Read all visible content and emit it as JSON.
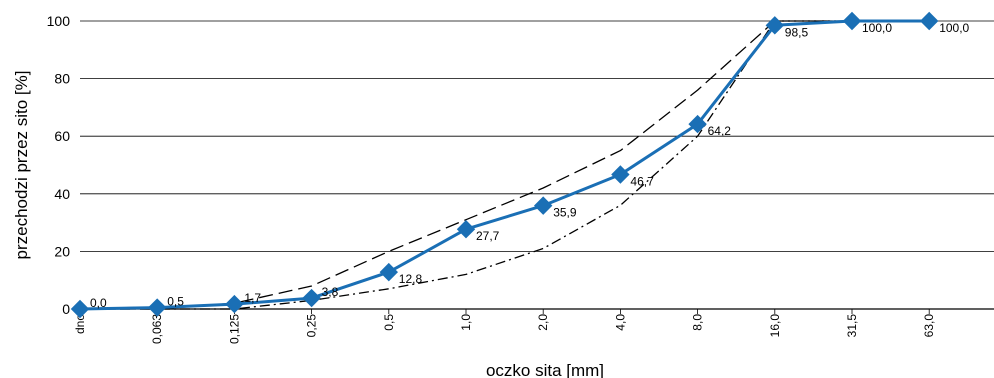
{
  "chart_data": {
    "type": "line",
    "xlabel": "oczko sita [mm]",
    "ylabel": "przechodzi przez sito [%]",
    "ylim": [
      0,
      100
    ],
    "yticks": [
      0,
      20,
      40,
      60,
      80,
      100
    ],
    "grid": "horizontal",
    "categories": [
      "dno",
      "0,063",
      "0,125",
      "0,25",
      "0,5",
      "1,0",
      "2,0",
      "4,0",
      "8,0",
      "16,0",
      "31,5",
      "63,0"
    ],
    "series": [
      {
        "role": "grading",
        "style": "solid",
        "color": "#1a6fb5",
        "marker": "diamond",
        "values": [
          0.0,
          0.5,
          1.7,
          3.8,
          12.8,
          27.7,
          35.9,
          46.7,
          64.2,
          98.5,
          100.0,
          100.0
        ],
        "labels": [
          "0,0",
          "0,5",
          "1,7",
          "3,8",
          "12,8",
          "27,7",
          "35,9",
          "46,7",
          "64,2",
          "98,5",
          "100,0",
          "100,0"
        ]
      },
      {
        "role": "upper-limit",
        "style": "dashed",
        "color": "#000000",
        "values": [
          0,
          0,
          2,
          8,
          20,
          31,
          42,
          55,
          76,
          100,
          100,
          null
        ]
      },
      {
        "role": "lower-limit",
        "style": "dashdot",
        "color": "#000000",
        "values": [
          0,
          0,
          0,
          3,
          7,
          12,
          21,
          36,
          60,
          100,
          100,
          null
        ]
      }
    ]
  }
}
